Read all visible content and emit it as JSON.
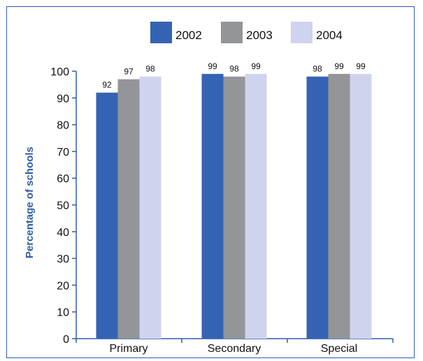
{
  "chart_data": {
    "type": "bar",
    "categories": [
      "Primary",
      "Secondary",
      "Special"
    ],
    "series": [
      {
        "name": "2002",
        "values": [
          92,
          99,
          98
        ],
        "color": "#3563b3"
      },
      {
        "name": "2003",
        "values": [
          97,
          98,
          99
        ],
        "color": "#939598"
      },
      {
        "name": "2004",
        "values": [
          98,
          99,
          99
        ],
        "color": "#d0d3ee"
      }
    ],
    "ylabel": "Percentage of schools",
    "xlabel": "",
    "title": "",
    "ylim": [
      0,
      100
    ],
    "yticks": [
      0,
      10,
      20,
      30,
      40,
      50,
      60,
      70,
      80,
      90,
      100
    ],
    "grid": false,
    "legend_position": "top"
  }
}
